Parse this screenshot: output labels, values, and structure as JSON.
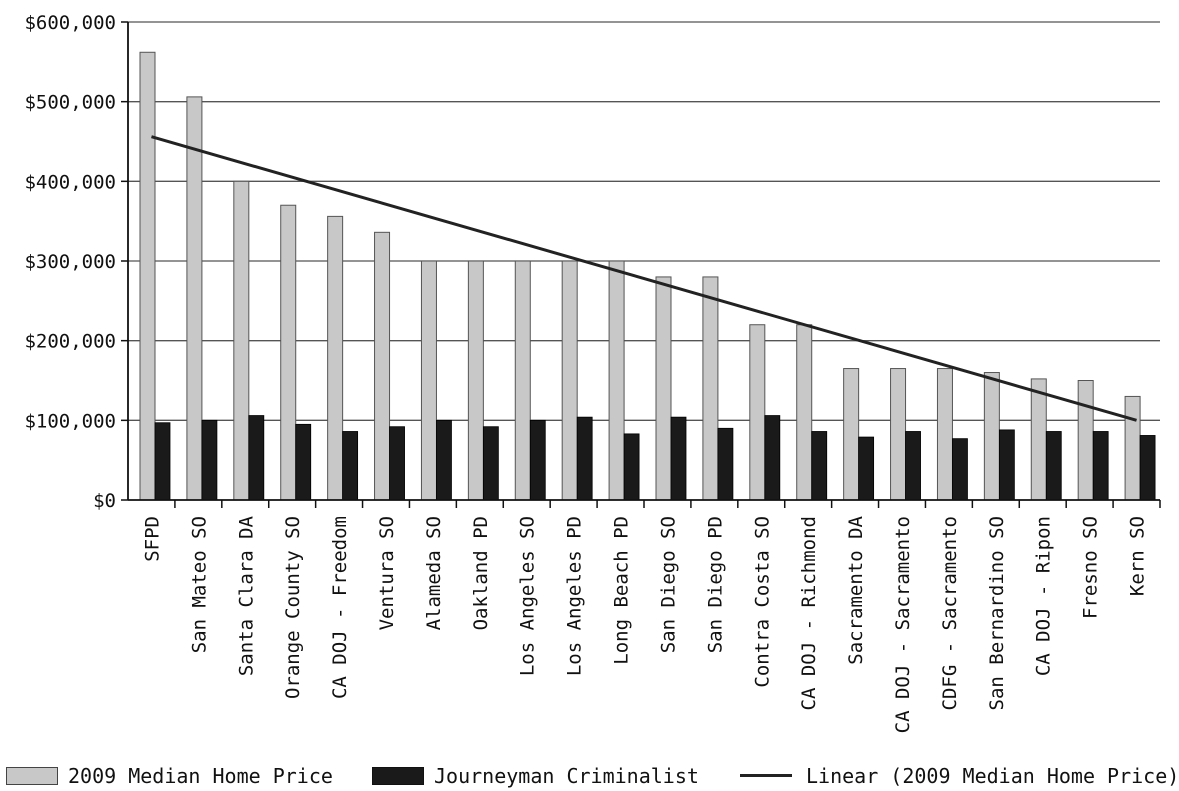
{
  "chart_data": {
    "type": "bar",
    "title": "",
    "xlabel": "",
    "ylabel": "",
    "ylim": [
      0,
      600000
    ],
    "y_ticks": [
      0,
      100000,
      200000,
      300000,
      400000,
      500000,
      600000
    ],
    "y_tick_labels": [
      "$0",
      "$100,000",
      "$200,000",
      "$300,000",
      "$400,000",
      "$500,000",
      "$600,000"
    ],
    "grid": true,
    "legend_position": "bottom",
    "categories": [
      "SFPD",
      "San Mateo SO",
      "Santa Clara DA",
      "Orange County SO",
      "CA DOJ - Freedom",
      "Ventura SO",
      "Alameda SO",
      "Oakland PD",
      "Los Angeles SO",
      "Los Angeles PD",
      "Long Beach PD",
      "San Diego SO",
      "San Diego PD",
      "Contra Costa SO",
      "CA DOJ - Richmond",
      "Sacramento DA",
      "CA DOJ - Sacramento",
      "CDFG - Sacramento",
      "San Bernardino SO",
      "CA DOJ - Ripon",
      "Fresno SO",
      "Kern SO"
    ],
    "series": [
      {
        "name": "2009 Median Home Price",
        "color": "#c8c8c8",
        "values": [
          562000,
          506000,
          400000,
          370000,
          356000,
          336000,
          300000,
          300000,
          300000,
          300000,
          300000,
          280000,
          280000,
          220000,
          220000,
          165000,
          165000,
          165000,
          160000,
          152000,
          150000,
          130000
        ]
      },
      {
        "name": "Journeyman Criminalist",
        "color": "#1a1a1a",
        "values": [
          97000,
          100000,
          106000,
          95000,
          86000,
          92000,
          100000,
          92000,
          100000,
          104000,
          83000,
          104000,
          90000,
          106000,
          86000,
          79000,
          86000,
          77000,
          88000,
          86000,
          86000,
          81000
        ]
      }
    ],
    "trendline": {
      "name": "Linear (2009 Median Home Price)",
      "color": "#222222",
      "type": "linear",
      "start_value": 456000,
      "end_value": 100000
    }
  }
}
